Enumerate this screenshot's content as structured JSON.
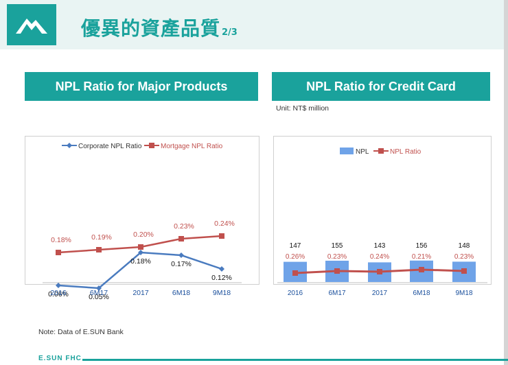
{
  "header": {
    "logo_icon": "mountain-logo-icon",
    "title": "優異的資產品質",
    "page_indicator": "2/3"
  },
  "left_banner": "NPL Ratio for Major Products",
  "right_banner": "NPL Ratio for Credit Card",
  "unit_label": "Unit: NT$ million",
  "note": "Note: Data of E.SUN Bank",
  "footer": "E.SUN FHC",
  "colors": {
    "teal": "#1aa29c",
    "blue": "#4a7bbf",
    "red": "#c0504d",
    "bar": "#6fa3e8"
  },
  "chart_data": [
    {
      "type": "line",
      "title": "NPL Ratio for Major Products",
      "categories": [
        "2016",
        "6M17",
        "2017",
        "6M18",
        "9M18"
      ],
      "ylim": [
        0,
        0.4
      ],
      "series": [
        {
          "name": "Corporate NPL Ratio",
          "values": [
            0.06,
            0.05,
            0.18,
            0.17,
            0.12
          ],
          "labels": [
            "0.06%",
            "0.05%",
            "0.18%",
            "0.17%",
            "0.12%"
          ]
        },
        {
          "name": "Mortgage NPL Ratio",
          "values": [
            0.18,
            0.19,
            0.2,
            0.23,
            0.24
          ],
          "labels": [
            "0.18%",
            "0.19%",
            "0.20%",
            "0.23%",
            "0.24%"
          ]
        }
      ],
      "legend": "top"
    },
    {
      "type": "bar",
      "title": "NPL Ratio for Credit Card",
      "categories": [
        "2016",
        "6M17",
        "2017",
        "6M18",
        "9M18"
      ],
      "series": [
        {
          "name": "NPL",
          "values": [
            147,
            155,
            143,
            156,
            148
          ],
          "labels": [
            "147",
            "155",
            "143",
            "156",
            "148"
          ]
        },
        {
          "name": "NPL Ratio",
          "values": [
            0.26,
            0.23,
            0.24,
            0.21,
            0.23
          ],
          "labels": [
            "0.26%",
            "0.23%",
            "0.24%",
            "0.21%",
            "0.23%"
          ]
        }
      ],
      "legend": "top"
    }
  ]
}
